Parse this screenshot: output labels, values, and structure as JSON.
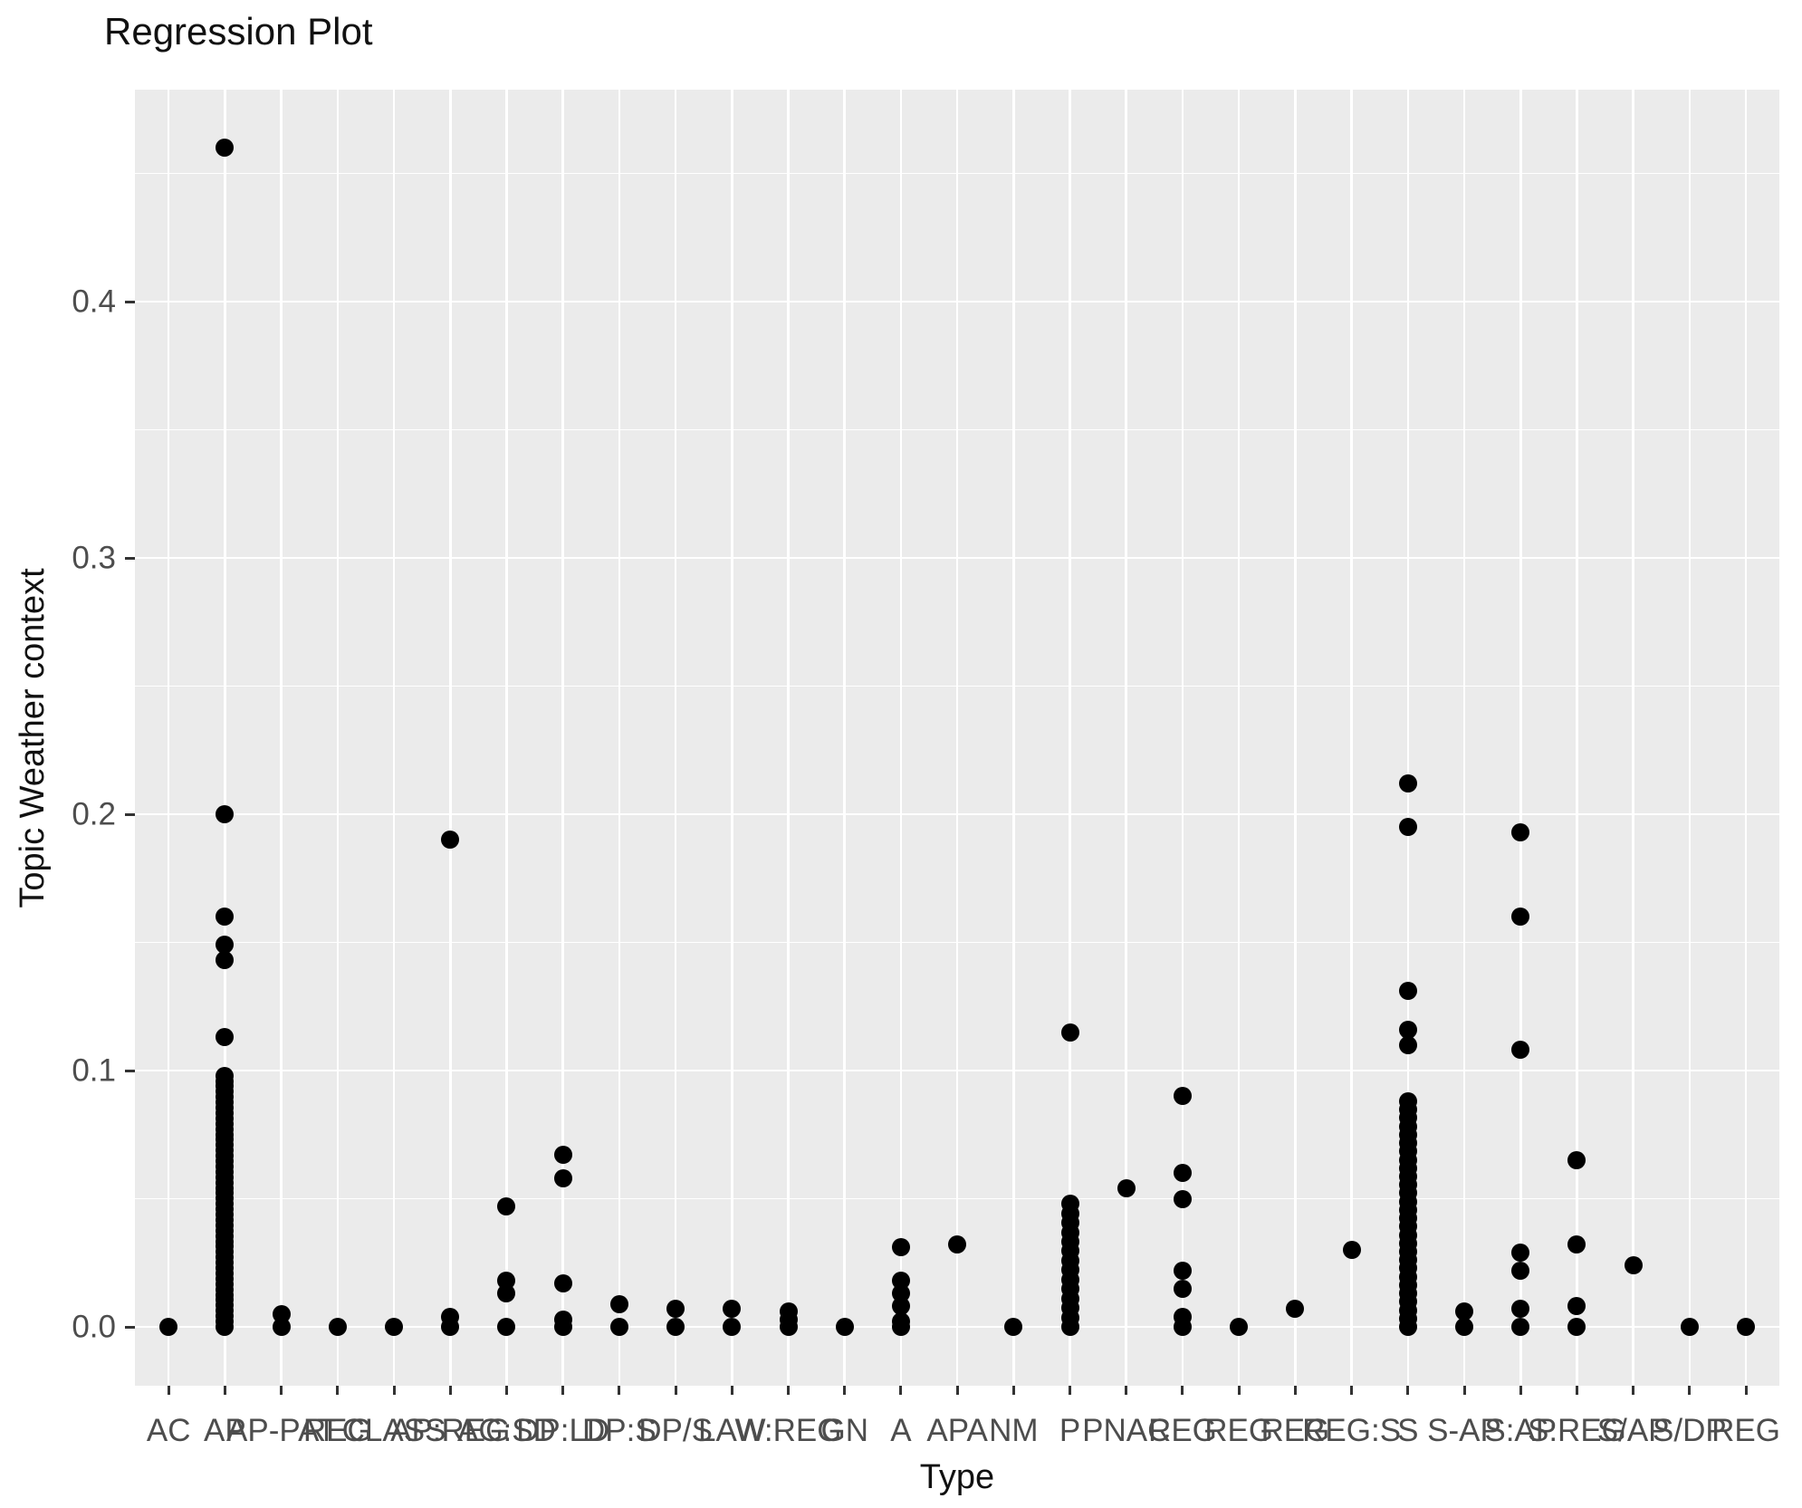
{
  "title": "Regression Plot",
  "x_axis": {
    "label": "Type"
  },
  "y_axis": {
    "label": "Topic Weather context"
  },
  "colors": {
    "panel_background": "#EBEBEB",
    "gridline": "#FFFFFF",
    "tick_mark": "#333333",
    "tick_label": "#4D4D4D",
    "point": "#000000",
    "title_text": "#111111"
  },
  "chart_data": {
    "type": "scatter",
    "title": "Regression Plot",
    "xlabel": "Type",
    "ylabel": "Topic Weather context",
    "legend": "none",
    "grid": "major-and-minor",
    "ylim": [
      -0.023,
      0.483
    ],
    "y_major_ticks": [
      0.0,
      0.1,
      0.2,
      0.3,
      0.4
    ],
    "y_major_tick_labels": [
      "0.0",
      "0.1",
      "0.2",
      "0.3",
      "0.4"
    ],
    "y_minor_ticks": [
      0.05,
      0.15,
      0.25,
      0.35,
      0.45
    ],
    "categories": [
      "AC",
      "AP",
      "AP-PAT",
      "REG",
      "CLASS",
      "AP:REG",
      "AG:SD",
      "DP:LD",
      "DP:S",
      "DP/S",
      "LAW",
      "W:REG",
      "GN",
      "A",
      "APA",
      "NM",
      "P",
      "PNAC",
      "REG",
      "REG",
      "REG",
      "REG:S",
      "S",
      "S-AP",
      "S:AP",
      "S:REG",
      "S/AP",
      "S/DP",
      "REG"
    ],
    "values_by_category": [
      [
        0
      ],
      [
        0.113,
        0.143,
        0.149,
        0.16,
        0.2,
        0.46
      ],
      [
        0,
        0.005
      ],
      [
        0
      ],
      [
        0
      ],
      [
        0,
        0.004,
        0.19
      ],
      [
        0,
        0.013,
        0.018,
        0.047
      ],
      [
        0,
        0.003,
        0.017,
        0.058,
        0.067
      ],
      [
        0,
        0.009
      ],
      [
        0,
        0.007
      ],
      [
        0,
        0.007
      ],
      [
        0,
        0.003,
        0.006
      ],
      [
        0
      ],
      [
        0,
        0.002,
        0.008,
        0.013,
        0.018,
        0.031
      ],
      [
        0.032
      ],
      [
        0
      ],
      [
        0.115
      ],
      [
        0.054
      ],
      [
        0,
        0.004,
        0.015,
        0.022,
        0.05,
        0.06,
        0.09
      ],
      [
        0
      ],
      [
        0.007
      ],
      [
        0.03
      ],
      [
        0.11,
        0.116,
        0.131,
        0.195,
        0.212
      ],
      [
        0,
        0.006
      ],
      [
        0,
        0.007,
        0.022,
        0.029,
        0.108,
        0.16,
        0.193
      ],
      [
        0,
        0.008,
        0.032,
        0.065
      ],
      [
        0.024
      ],
      [
        0
      ],
      [
        0
      ]
    ],
    "dense_stacks": [
      {
        "category_index": 1,
        "min": 0,
        "max": 0.098,
        "count": 48
      },
      {
        "category_index": 16,
        "min": 0,
        "max": 0.048,
        "count": 14
      },
      {
        "category_index": 22,
        "min": 0,
        "max": 0.088,
        "count": 28
      }
    ]
  }
}
